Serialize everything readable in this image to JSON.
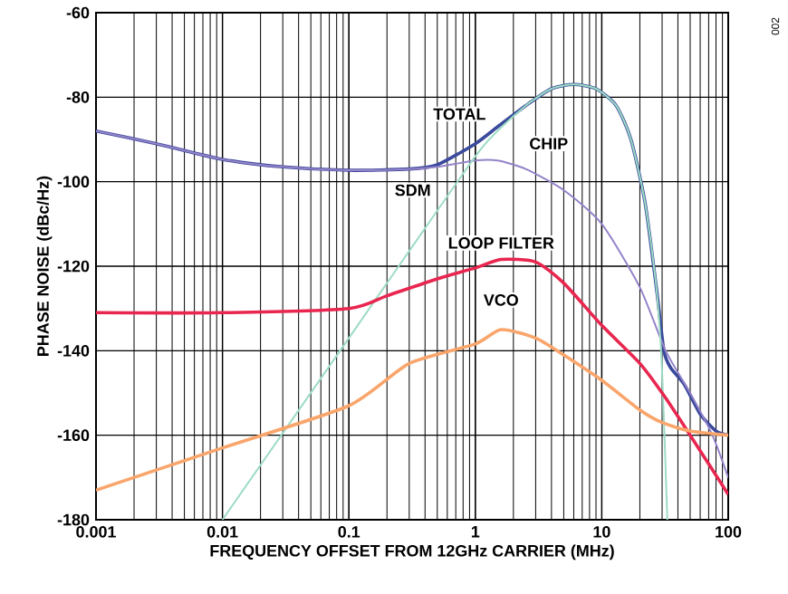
{
  "chart_data": {
    "type": "line",
    "xlabel": "FREQUENCY OFFSET FROM 12GHz CARRIER (MHz)",
    "ylabel": "PHASE NOISE (dBc/Hz)",
    "log": "x",
    "grid": true,
    "legend": false,
    "marker": "none",
    "line_style": "solid",
    "xlim": [
      0.001,
      100
    ],
    "ylim": [
      -180,
      -60
    ],
    "xticks": [
      0.001,
      0.01,
      0.1,
      1,
      10,
      100
    ],
    "yticks": [
      -180,
      -160,
      -140,
      -120,
      -100,
      -80,
      -60
    ],
    "annotations": [
      "002"
    ],
    "series": [
      {
        "name": "TOTAL",
        "color": "#3b4a9c",
        "x": [
          0.001,
          0.003,
          0.01,
          0.03,
          0.1,
          0.3,
          0.5,
          1,
          1.5,
          2.5,
          4,
          6,
          9,
          13,
          17,
          22,
          27,
          31,
          35,
          45,
          60,
          80,
          100
        ],
        "values": [
          -88,
          -91,
          -94.7,
          -96.5,
          -97.3,
          -97,
          -96,
          -91,
          -87,
          -82,
          -78,
          -77,
          -78,
          -82,
          -90,
          -105,
          -125,
          -140,
          -144,
          -148,
          -155,
          -159,
          -160
        ]
      },
      {
        "name": "CHIP",
        "color": "#9483c9",
        "x": [
          0.001,
          0.003,
          0.01,
          0.03,
          0.1,
          0.3,
          0.5,
          1,
          1.5,
          2.5,
          5,
          10,
          20,
          32,
          50,
          75,
          100
        ],
        "values": [
          -88,
          -91,
          -94.7,
          -96.5,
          -97.3,
          -97,
          -96.5,
          -95,
          -95,
          -97,
          -102,
          -110,
          -125,
          -140,
          -150,
          -160,
          -170
        ]
      },
      {
        "name": "SDM",
        "color": "#9ddcc4",
        "x": [
          0.01,
          0.1,
          0.2,
          1,
          1.5,
          2.5,
          4,
          6,
          9,
          13,
          17,
          22,
          27,
          30,
          33
        ],
        "values": [
          -180,
          -137,
          -124,
          -94,
          -88,
          -82,
          -78,
          -77,
          -78,
          -82,
          -90,
          -105,
          -125,
          -145,
          -180
        ]
      },
      {
        "name": "LOOP FILTER",
        "color": "#e8264f",
        "x": [
          0.001,
          0.01,
          0.1,
          0.2,
          0.5,
          1,
          1.6,
          3,
          5,
          10,
          20,
          31,
          50,
          100
        ],
        "values": [
          -131,
          -131,
          -130,
          -127,
          -123,
          -120.4,
          -118.4,
          -119,
          -124,
          -134,
          -143,
          -150.6,
          -160,
          -174
        ]
      },
      {
        "name": "VCO",
        "color": "#f9a56b",
        "x": [
          0.001,
          0.01,
          0.1,
          0.3,
          1,
          1.6,
          3,
          5,
          10,
          20,
          30,
          50,
          100
        ],
        "values": [
          -173,
          -163,
          -153,
          -143,
          -138.4,
          -135,
          -137,
          -141,
          -147,
          -154,
          -157,
          -159,
          -160
        ]
      }
    ]
  }
}
